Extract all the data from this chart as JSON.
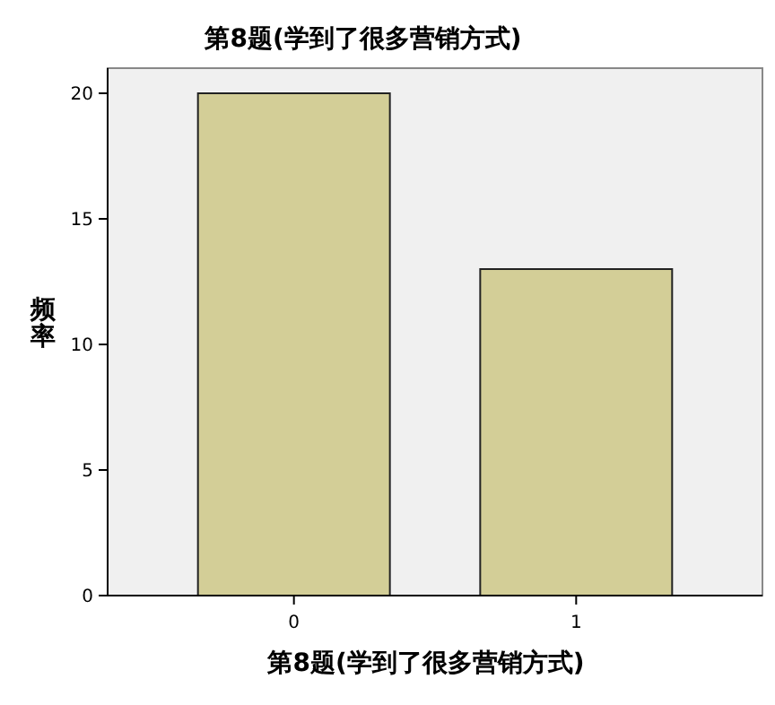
{
  "chart_data": {
    "type": "bar",
    "title": "第8题(学到了很多营销方式)",
    "xlabel": "第8题(学到了很多营销方式)",
    "ylabel": "频率",
    "categories": [
      "0",
      "1"
    ],
    "values": [
      20,
      13
    ],
    "color": "#d3ce97",
    "ylim": [
      0,
      21
    ],
    "yticks": [
      0,
      5,
      10,
      15,
      20
    ],
    "grid": false
  }
}
